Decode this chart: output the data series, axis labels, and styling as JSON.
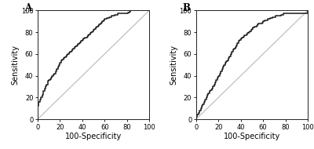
{
  "panel_A_label": "A",
  "panel_B_label": "B",
  "xlabel": "100-Specificity",
  "ylabel": "Sensitivity",
  "xlim": [
    0,
    100
  ],
  "ylim": [
    0,
    100
  ],
  "xticks": [
    0,
    20,
    40,
    60,
    80,
    100
  ],
  "yticks": [
    0,
    20,
    40,
    60,
    80,
    100
  ],
  "diag_color": "#c0c0c0",
  "curve_color": "#1a1a1a",
  "curve_lw": 1.1,
  "diag_lw": 0.9,
  "tick_fontsize": 6.0,
  "label_fontsize": 7.0,
  "panel_label_fontsize": 8.5,
  "background_color": "#ffffff",
  "roc_A_x": [
    0,
    0,
    1,
    2,
    3,
    4,
    5,
    5,
    6,
    7,
    8,
    9,
    9,
    10,
    11,
    12,
    13,
    14,
    15,
    16,
    17,
    18,
    19,
    20,
    21,
    22,
    23,
    24,
    25,
    26,
    27,
    28,
    29,
    30,
    31,
    32,
    33,
    34,
    35,
    36,
    37,
    38,
    39,
    40,
    41,
    42,
    43,
    44,
    45,
    46,
    47,
    48,
    49,
    50,
    51,
    52,
    53,
    54,
    55,
    56,
    57,
    58,
    59,
    60,
    61,
    62,
    63,
    64,
    65,
    66,
    67,
    68,
    69,
    70,
    71,
    72,
    73,
    74,
    75,
    76,
    77,
    78,
    79,
    80,
    81,
    82,
    83,
    84,
    85,
    86,
    87,
    88,
    89,
    90,
    100
  ],
  "roc_A_y": [
    0,
    12,
    16,
    18,
    20,
    22,
    24,
    26,
    28,
    30,
    32,
    34,
    35,
    36,
    37,
    38,
    40,
    41,
    42,
    44,
    46,
    48,
    50,
    52,
    54,
    55,
    56,
    57,
    58,
    59,
    60,
    61,
    62,
    63,
    64,
    65,
    66,
    67,
    68,
    69,
    70,
    71,
    72,
    73,
    74,
    75,
    75,
    76,
    77,
    78,
    79,
    80,
    81,
    82,
    83,
    84,
    85,
    86,
    87,
    88,
    89,
    90,
    91,
    92,
    92,
    93,
    93,
    94,
    94,
    95,
    95,
    95,
    96,
    96,
    96,
    97,
    97,
    97,
    97,
    97,
    97,
    97,
    97,
    97,
    98,
    99,
    100,
    100,
    100,
    100,
    100,
    100,
    100,
    100,
    100
  ],
  "roc_B_x": [
    0,
    0,
    1,
    2,
    3,
    4,
    5,
    6,
    7,
    8,
    9,
    10,
    11,
    12,
    13,
    14,
    15,
    16,
    17,
    18,
    19,
    20,
    21,
    22,
    23,
    24,
    25,
    26,
    27,
    28,
    29,
    30,
    31,
    32,
    33,
    34,
    35,
    36,
    37,
    38,
    39,
    40,
    41,
    42,
    43,
    44,
    45,
    46,
    47,
    48,
    49,
    50,
    51,
    52,
    53,
    54,
    55,
    56,
    57,
    58,
    59,
    60,
    61,
    62,
    63,
    64,
    65,
    66,
    67,
    68,
    69,
    70,
    71,
    72,
    73,
    74,
    75,
    76,
    77,
    78,
    79,
    80,
    81,
    82,
    83,
    84,
    85,
    86,
    87,
    88,
    89,
    90,
    91,
    92,
    93,
    94,
    95,
    96,
    100
  ],
  "roc_B_y": [
    0,
    2,
    4,
    6,
    8,
    10,
    12,
    14,
    16,
    18,
    20,
    22,
    24,
    26,
    27,
    28,
    30,
    32,
    34,
    36,
    38,
    40,
    42,
    44,
    46,
    48,
    50,
    52,
    53,
    54,
    56,
    58,
    60,
    62,
    64,
    65,
    66,
    68,
    70,
    72,
    73,
    74,
    75,
    76,
    77,
    77,
    78,
    79,
    80,
    81,
    82,
    83,
    84,
    85,
    85,
    86,
    87,
    88,
    88,
    88,
    89,
    90,
    91,
    91,
    91,
    92,
    92,
    93,
    93,
    94,
    94,
    94,
    95,
    95,
    95,
    95,
    95,
    96,
    96,
    97,
    97,
    97,
    97,
    97,
    97,
    97,
    97,
    97,
    97,
    97,
    97,
    97,
    97,
    97,
    97,
    97,
    97,
    97,
    100
  ]
}
